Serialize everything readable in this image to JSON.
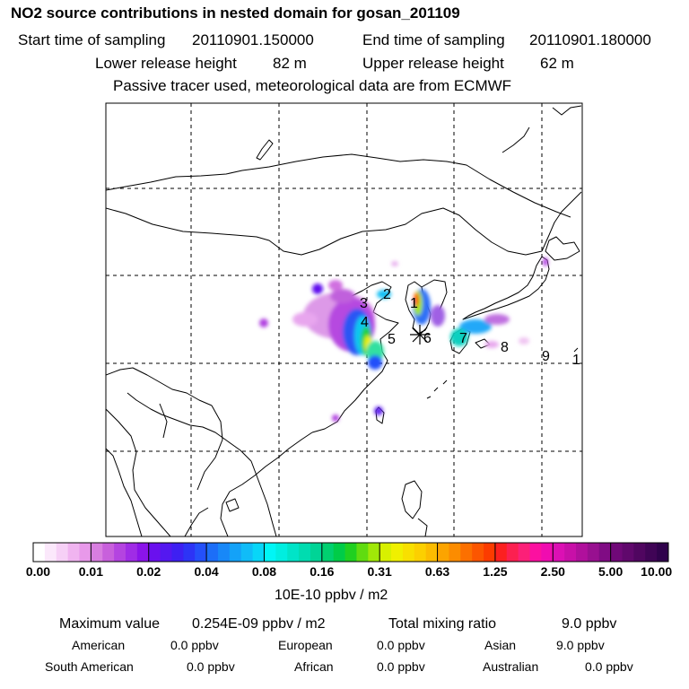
{
  "header": {
    "title": "NO2 source contributions in nested domain for gosan_201109",
    "start_label": "Start time of sampling",
    "start_value": "20110901.150000",
    "end_label": "End time of sampling",
    "end_value": "20110901.180000",
    "lower_label": "Lower release height",
    "lower_value": "82 m",
    "upper_label": "Upper release height",
    "upper_value": "62 m",
    "note": "Passive tracer used, meteorological data are from ECMWF"
  },
  "map": {
    "receptor_marker": "asterisk-icon",
    "source_labels": [
      "1",
      "2",
      "3",
      "4",
      "5",
      "6",
      "7",
      "8",
      "9",
      "1"
    ]
  },
  "colorbar": {
    "ticks": [
      "0.00",
      "0.01",
      "0.02",
      "0.04",
      "0.08",
      "0.16",
      "0.31",
      "0.63",
      "1.25",
      "2.50",
      "5.00",
      "10.00"
    ],
    "unit": "10E-10 ppbv / m2",
    "colors": [
      [
        "#ffffff",
        "#fbe8fb",
        "#f6d0f6",
        "#f0b4f0",
        "#e899ea"
      ],
      [
        "#d87ee0",
        "#c860dc",
        "#b444e0",
        "#a02ce6",
        "#8b14ea"
      ],
      [
        "#6a10ee",
        "#5418f0",
        "#3e20f2",
        "#2d34f6",
        "#2450fa"
      ],
      [
        "#1c6ef8",
        "#1888f8",
        "#14a2f8",
        "#10bcf8",
        "#08d6f8"
      ],
      [
        "#00f6f6",
        "#00eee0",
        "#00e4c8",
        "#00dcb0",
        "#00d496"
      ],
      [
        "#00d070",
        "#00cc48",
        "#20d020",
        "#60dc10",
        "#a0e808"
      ],
      [
        "#d8f000",
        "#f0f000",
        "#f8e000",
        "#fcd000",
        "#fcbc00"
      ],
      [
        "#fca400",
        "#fc8c00",
        "#fc7000",
        "#fc5600",
        "#fc3c00"
      ],
      [
        "#fc2020",
        "#fc2050",
        "#fc2078",
        "#fc10a0",
        "#f00cb0"
      ],
      [
        "#dc10b4",
        "#c810a8",
        "#b0109c",
        "#981090",
        "#800c84"
      ],
      [
        "#700878",
        "#60086c",
        "#500660",
        "#400456",
        "#30024c"
      ]
    ]
  },
  "stats": {
    "max_label": "Maximum value",
    "max_value": "0.254E-09 ppbv / m2",
    "total_label": "Total mixing ratio",
    "total_value": "9.0 ppbv",
    "regions": [
      {
        "name": "American",
        "value": "0.0 ppbv"
      },
      {
        "name": "European",
        "value": "0.0 ppbv"
      },
      {
        "name": "Asian",
        "value": "9.0 ppbv"
      },
      {
        "name": "South American",
        "value": "0.0 ppbv"
      },
      {
        "name": "African",
        "value": "0.0 ppbv"
      },
      {
        "name": "Australian",
        "value": "0.0 ppbv"
      }
    ]
  }
}
